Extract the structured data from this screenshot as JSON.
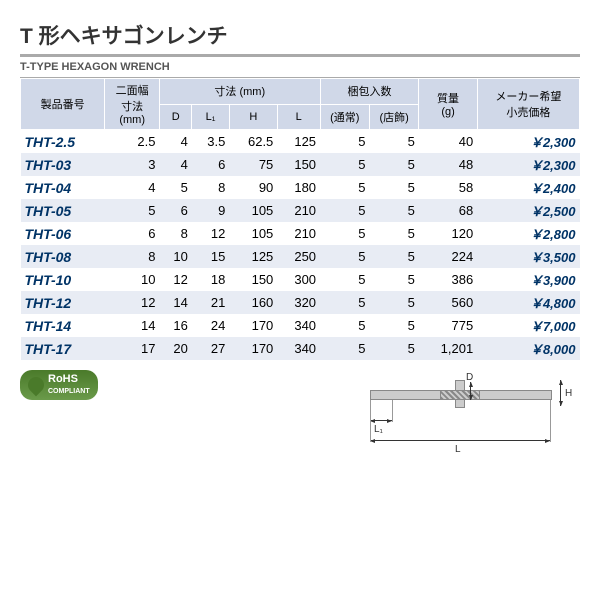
{
  "title_ja": "T 形ヘキサゴンレンチ",
  "title_en": "T-TYPE HEXAGON WRENCH",
  "headers": {
    "pn": "製品番号",
    "width": "二面幅\n寸法\n(mm)",
    "dim": "寸法 (mm)",
    "D": "D",
    "L1": "L₁",
    "H": "H",
    "L": "L",
    "pack": "梱包入数",
    "pack_a": "(通常)",
    "pack_b": "(店飾)",
    "mass": "質量\n(g)",
    "price": "メーカー希望\n小売価格"
  },
  "rows": [
    {
      "pn": "THT-2.5",
      "w": "2.5",
      "d": "4",
      "l1": "3.5",
      "h": "62.5",
      "l": "125",
      "pa": "5",
      "pb": "5",
      "m": "40",
      "pr": "￥2,300"
    },
    {
      "pn": "THT-03",
      "w": "3",
      "d": "4",
      "l1": "6",
      "h": "75",
      "l": "150",
      "pa": "5",
      "pb": "5",
      "m": "48",
      "pr": "￥2,300"
    },
    {
      "pn": "THT-04",
      "w": "4",
      "d": "5",
      "l1": "8",
      "h": "90",
      "l": "180",
      "pa": "5",
      "pb": "5",
      "m": "58",
      "pr": "￥2,400"
    },
    {
      "pn": "THT-05",
      "w": "5",
      "d": "6",
      "l1": "9",
      "h": "105",
      "l": "210",
      "pa": "5",
      "pb": "5",
      "m": "68",
      "pr": "￥2,500"
    },
    {
      "pn": "THT-06",
      "w": "6",
      "d": "8",
      "l1": "12",
      "h": "105",
      "l": "210",
      "pa": "5",
      "pb": "5",
      "m": "120",
      "pr": "￥2,800"
    },
    {
      "pn": "THT-08",
      "w": "8",
      "d": "10",
      "l1": "15",
      "h": "125",
      "l": "250",
      "pa": "5",
      "pb": "5",
      "m": "224",
      "pr": "￥3,500"
    },
    {
      "pn": "THT-10",
      "w": "10",
      "d": "12",
      "l1": "18",
      "h": "150",
      "l": "300",
      "pa": "5",
      "pb": "5",
      "m": "386",
      "pr": "￥3,900"
    },
    {
      "pn": "THT-12",
      "w": "12",
      "d": "14",
      "l1": "21",
      "h": "160",
      "l": "320",
      "pa": "5",
      "pb": "5",
      "m": "560",
      "pr": "￥4,800"
    },
    {
      "pn": "THT-14",
      "w": "14",
      "d": "16",
      "l1": "24",
      "h": "170",
      "l": "340",
      "pa": "5",
      "pb": "5",
      "m": "775",
      "pr": "￥7,000"
    },
    {
      "pn": "THT-17",
      "w": "17",
      "d": "20",
      "l1": "27",
      "h": "170",
      "l": "340",
      "pa": "5",
      "pb": "5",
      "m": "1,201",
      "pr": "￥8,000"
    }
  ],
  "rohs": {
    "l1": "RoHS",
    "l2": "COMPLIANT"
  },
  "diag": {
    "D": "D",
    "L1": "L₁",
    "H": "H",
    "L": "L"
  }
}
